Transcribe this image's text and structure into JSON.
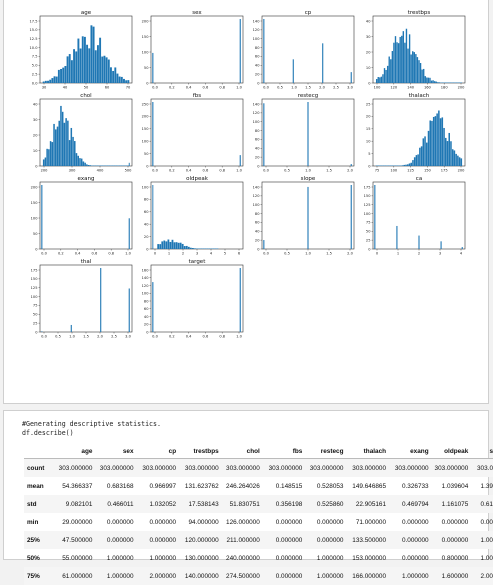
{
  "plots": [
    {
      "title": "age",
      "xticks": [
        "30",
        "40",
        "50",
        "60",
        "70"
      ],
      "yticks": [
        "0.0",
        "2.5",
        "5.0",
        "7.5",
        "10.0",
        "12.5",
        "15.0",
        "17.5"
      ]
    },
    {
      "title": "sex",
      "xticks": [
        "0.0",
        "0.2",
        "0.4",
        "0.6",
        "0.8",
        "1.0"
      ],
      "yticks": [
        "0",
        "50",
        "100",
        "150",
        "200"
      ]
    },
    {
      "title": "cp",
      "xticks": [
        "0.0",
        "0.5",
        "1.0",
        "1.5",
        "2.0",
        "2.5",
        "3.0"
      ],
      "yticks": [
        "0",
        "20",
        "40",
        "60",
        "80",
        "100",
        "120",
        "140"
      ]
    },
    {
      "title": "trestbps",
      "xticks": [
        "100",
        "120",
        "140",
        "160",
        "180",
        "200"
      ],
      "yticks": [
        "0",
        "10",
        "20",
        "30",
        "40"
      ]
    },
    {
      "title": "chol",
      "xticks": [
        "200",
        "300",
        "400",
        "500"
      ],
      "yticks": [
        "0",
        "10",
        "20",
        "30",
        "40"
      ]
    },
    {
      "title": "fbs",
      "xticks": [
        "0.0",
        "0.2",
        "0.4",
        "0.6",
        "0.8",
        "1.0"
      ],
      "yticks": [
        "0",
        "50",
        "100",
        "150",
        "200",
        "250"
      ]
    },
    {
      "title": "restecg",
      "xticks": [
        "0.0",
        "0.5",
        "1.0",
        "1.5",
        "2.0"
      ],
      "yticks": [
        "0",
        "20",
        "40",
        "60",
        "80",
        "100",
        "120",
        "140"
      ]
    },
    {
      "title": "thalach",
      "xticks": [
        "75",
        "100",
        "125",
        "150",
        "175",
        "200"
      ],
      "yticks": [
        "0",
        "5",
        "10",
        "15",
        "20",
        "25"
      ]
    },
    {
      "title": "exang",
      "xticks": [
        "0.0",
        "0.2",
        "0.4",
        "0.6",
        "0.8",
        "1.0"
      ],
      "yticks": [
        "0",
        "50",
        "100",
        "150",
        "200"
      ]
    },
    {
      "title": "oldpeak",
      "xticks": [
        "0",
        "1",
        "2",
        "3",
        "4",
        "5",
        "6"
      ],
      "yticks": [
        "0",
        "20",
        "40",
        "60",
        "80",
        "100"
      ]
    },
    {
      "title": "slope",
      "xticks": [
        "0.0",
        "0.5",
        "1.0",
        "1.5",
        "2.0"
      ],
      "yticks": [
        "0",
        "20",
        "40",
        "60",
        "80",
        "100",
        "120",
        "140"
      ]
    },
    {
      "title": "ca",
      "xticks": [
        "0",
        "1",
        "2",
        "3",
        "4"
      ],
      "yticks": [
        "0",
        "25",
        "50",
        "75",
        "100",
        "125",
        "150",
        "175"
      ]
    },
    {
      "title": "thal",
      "xticks": [
        "0.0",
        "0.5",
        "1.0",
        "1.5",
        "2.0",
        "2.5",
        "3.0"
      ],
      "yticks": [
        "0",
        "25",
        "50",
        "75",
        "100",
        "125",
        "150",
        "175"
      ]
    },
    {
      "title": "target",
      "xticks": [
        "0.0",
        "0.2",
        "0.4",
        "0.6",
        "0.8",
        "1.0"
      ],
      "yticks": [
        "0",
        "20",
        "40",
        "60",
        "80",
        "100",
        "120",
        "140",
        "160"
      ]
    }
  ],
  "bar_color": "#1f77b4",
  "code": {
    "comment": "#Generating descriptive statistics.",
    "call": "df.describe()"
  },
  "table": {
    "columns": [
      "",
      "age",
      "sex",
      "cp",
      "trestbps",
      "chol",
      "fbs",
      "restecg",
      "thalach",
      "exang",
      "oldpeak",
      "s"
    ],
    "rows": [
      [
        "count",
        "303.000000",
        "303.000000",
        "303.000000",
        "303.000000",
        "303.000000",
        "303.000000",
        "303.000000",
        "303.000000",
        "303.000000",
        "303.000000",
        "303.0"
      ],
      [
        "mean",
        "54.366337",
        "0.683168",
        "0.966997",
        "131.623762",
        "246.264026",
        "0.148515",
        "0.528053",
        "149.646865",
        "0.326733",
        "1.039604",
        "1.39"
      ],
      [
        "std",
        "9.082101",
        "0.466011",
        "1.032052",
        "17.538143",
        "51.830751",
        "0.356198",
        "0.525860",
        "22.905161",
        "0.469794",
        "1.161075",
        "0.61"
      ],
      [
        "min",
        "29.000000",
        "0.000000",
        "0.000000",
        "94.000000",
        "126.000000",
        "0.000000",
        "0.000000",
        "71.000000",
        "0.000000",
        "0.000000",
        "0.00"
      ],
      [
        "25%",
        "47.500000",
        "0.000000",
        "0.000000",
        "120.000000",
        "211.000000",
        "0.000000",
        "0.000000",
        "133.500000",
        "0.000000",
        "0.000000",
        "1.00"
      ],
      [
        "50%",
        "55.000000",
        "1.000000",
        "1.000000",
        "130.000000",
        "240.000000",
        "0.000000",
        "1.000000",
        "153.000000",
        "0.000000",
        "0.800000",
        "1.00"
      ],
      [
        "75%",
        "61.000000",
        "1.000000",
        "2.000000",
        "140.000000",
        "274.500000",
        "0.000000",
        "1.000000",
        "166.000000",
        "1.000000",
        "1.600000",
        "2.00"
      ]
    ]
  }
}
